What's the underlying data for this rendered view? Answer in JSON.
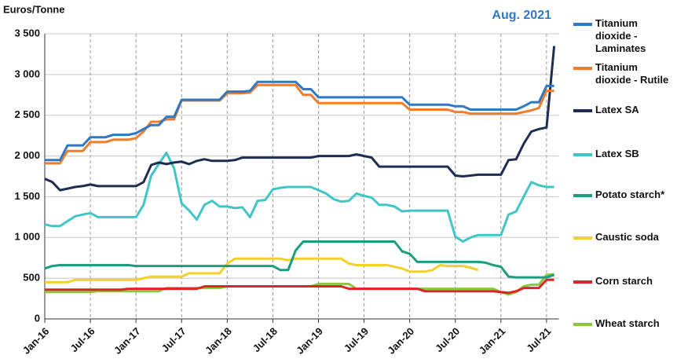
{
  "chart_data": {
    "type": "line",
    "title": "Aug. 2021",
    "y_label": "Euros/Tonne",
    "categories": [
      "Jan-16",
      null,
      null,
      null,
      null,
      null,
      "Jul-16",
      null,
      null,
      null,
      null,
      null,
      "Jan-17",
      null,
      null,
      null,
      null,
      null,
      "Jul-17",
      null,
      null,
      null,
      null,
      null,
      "Jan-18",
      null,
      null,
      null,
      null,
      null,
      "Jul-18",
      null,
      null,
      null,
      null,
      null,
      "Jan-19",
      null,
      null,
      null,
      null,
      null,
      "Jul-19",
      null,
      null,
      null,
      null,
      null,
      "Jan-20",
      null,
      null,
      null,
      null,
      null,
      "Jul-20",
      null,
      null,
      null,
      null,
      null,
      "Jan-21",
      null,
      null,
      null,
      null,
      null,
      "Jul-21",
      null
    ],
    "ylim": [
      0,
      3500
    ],
    "yticks": [
      0,
      500,
      {
        "value": 1000,
        "label": "1 000"
      },
      {
        "value": 1500,
        "label": "1 500"
      },
      {
        "value": 2000,
        "label": "2 000"
      },
      {
        "value": 2500,
        "label": "2 500"
      },
      {
        "value": 3000,
        "label": "3 000"
      },
      {
        "value": 3500,
        "label": "3 500"
      }
    ],
    "grid": true,
    "legend": "right",
    "series": [
      {
        "name": "Titanium dioxide - Laminates",
        "color": "#2e78c4",
        "values": [
          1950,
          1950,
          1950,
          2130,
          2130,
          2130,
          2230,
          2230,
          2230,
          2260,
          2260,
          2260,
          2280,
          2330,
          2380,
          2380,
          2480,
          2480,
          2690,
          2690,
          2690,
          2690,
          2690,
          2690,
          2790,
          2790,
          2790,
          2800,
          2910,
          2910,
          2910,
          2910,
          2910,
          2910,
          2820,
          2820,
          2720,
          2720,
          2720,
          2720,
          2720,
          2720,
          2720,
          2720,
          2720,
          2720,
          2720,
          2720,
          2630,
          2630,
          2630,
          2630,
          2630,
          2630,
          2610,
          2610,
          2570,
          2570,
          2570,
          2570,
          2570,
          2570,
          2570,
          2610,
          2660,
          2660,
          2860,
          2860
        ]
      },
      {
        "name": "Titanium dioxide - Rutile",
        "color": "#f07c2c",
        "values": [
          1910,
          1910,
          1910,
          2060,
          2060,
          2060,
          2170,
          2170,
          2170,
          2200,
          2200,
          2200,
          2220,
          2300,
          2420,
          2420,
          2450,
          2450,
          2680,
          2680,
          2680,
          2680,
          2680,
          2680,
          2770,
          2770,
          2770,
          2780,
          2870,
          2870,
          2870,
          2870,
          2870,
          2870,
          2750,
          2750,
          2650,
          2650,
          2650,
          2650,
          2650,
          2650,
          2650,
          2650,
          2650,
          2650,
          2650,
          2650,
          2570,
          2570,
          2570,
          2570,
          2570,
          2570,
          2540,
          2540,
          2520,
          2520,
          2520,
          2520,
          2520,
          2520,
          2520,
          2540,
          2560,
          2590,
          2800,
          2800
        ]
      },
      {
        "name": "Latex SA",
        "color": "#1f2d50",
        "values": [
          1720,
          1680,
          1580,
          1600,
          1620,
          1630,
          1650,
          1630,
          1630,
          1630,
          1630,
          1630,
          1630,
          1680,
          1890,
          1920,
          1900,
          1920,
          1930,
          1900,
          1940,
          1960,
          1940,
          1940,
          1940,
          1950,
          1980,
          1980,
          1980,
          1980,
          1980,
          1980,
          1980,
          1980,
          1980,
          1980,
          2000,
          2000,
          2000,
          2000,
          2000,
          2020,
          2000,
          1980,
          1870,
          1870,
          1870,
          1870,
          1870,
          1870,
          1870,
          1870,
          1870,
          1870,
          1760,
          1750,
          1760,
          1770,
          1770,
          1770,
          1770,
          1950,
          1960,
          2150,
          2300,
          2330,
          2350,
          3350
        ]
      },
      {
        "name": "Latex SB",
        "color": "#41c6c8",
        "values": [
          1160,
          1140,
          1140,
          1200,
          1260,
          1280,
          1300,
          1250,
          1250,
          1250,
          1250,
          1250,
          1250,
          1400,
          1760,
          1900,
          2040,
          1850,
          1420,
          1330,
          1220,
          1400,
          1450,
          1380,
          1380,
          1360,
          1370,
          1250,
          1450,
          1460,
          1590,
          1610,
          1620,
          1620,
          1620,
          1620,
          1580,
          1540,
          1470,
          1440,
          1450,
          1540,
          1510,
          1490,
          1400,
          1400,
          1380,
          1320,
          1330,
          1330,
          1330,
          1330,
          1330,
          1330,
          1010,
          950,
          1000,
          1030,
          1030,
          1030,
          1030,
          1280,
          1320,
          1500,
          1680,
          1640,
          1620,
          1620
        ]
      },
      {
        "name": "Potato starch*",
        "color": "#1a9e7e",
        "values": [
          620,
          650,
          660,
          660,
          660,
          660,
          660,
          660,
          660,
          660,
          660,
          660,
          650,
          650,
          650,
          650,
          650,
          650,
          650,
          650,
          650,
          650,
          650,
          650,
          650,
          650,
          650,
          650,
          650,
          650,
          650,
          600,
          600,
          840,
          950,
          950,
          950,
          950,
          950,
          950,
          950,
          950,
          950,
          950,
          950,
          950,
          950,
          830,
          800,
          700,
          700,
          700,
          700,
          700,
          700,
          700,
          700,
          700,
          690,
          660,
          640,
          520,
          510,
          510,
          510,
          510,
          510,
          540
        ]
      },
      {
        "name": "Caustic soda",
        "color": "#f2d12a",
        "values": [
          450,
          450,
          450,
          450,
          480,
          480,
          480,
          480,
          480,
          480,
          480,
          480,
          480,
          500,
          520,
          520,
          520,
          520,
          520,
          560,
          560,
          560,
          560,
          560,
          680,
          740,
          740,
          740,
          740,
          740,
          740,
          740,
          720,
          740,
          740,
          740,
          740,
          740,
          740,
          740,
          680,
          660,
          660,
          660,
          660,
          660,
          640,
          620,
          580,
          580,
          580,
          600,
          660,
          650,
          650,
          650,
          630,
          600,
          null,
          null,
          null,
          null,
          null,
          null,
          null,
          null,
          null,
          null
        ]
      },
      {
        "name": "Corn starch",
        "color": "#e02424",
        "values": [
          360,
          360,
          360,
          360,
          360,
          360,
          360,
          360,
          360,
          360,
          360,
          370,
          370,
          370,
          370,
          370,
          370,
          370,
          370,
          370,
          370,
          400,
          400,
          400,
          400,
          400,
          400,
          400,
          400,
          400,
          400,
          400,
          400,
          400,
          400,
          400,
          400,
          400,
          400,
          400,
          370,
          370,
          370,
          370,
          370,
          370,
          370,
          370,
          370,
          370,
          340,
          340,
          340,
          340,
          340,
          340,
          340,
          340,
          340,
          340,
          330,
          320,
          340,
          380,
          380,
          380,
          480,
          480
        ]
      },
      {
        "name": "Wheat starch",
        "color": "#8cc63f",
        "values": [
          330,
          330,
          330,
          330,
          330,
          330,
          330,
          340,
          340,
          340,
          340,
          340,
          340,
          340,
          340,
          340,
          380,
          380,
          380,
          380,
          380,
          380,
          380,
          380,
          400,
          400,
          400,
          400,
          400,
          400,
          400,
          400,
          400,
          400,
          400,
          400,
          430,
          430,
          430,
          430,
          430,
          370,
          370,
          370,
          370,
          370,
          370,
          370,
          370,
          370,
          370,
          370,
          370,
          370,
          370,
          370,
          370,
          370,
          370,
          370,
          330,
          300,
          330,
          400,
          420,
          420,
          540,
          550
        ]
      }
    ]
  }
}
